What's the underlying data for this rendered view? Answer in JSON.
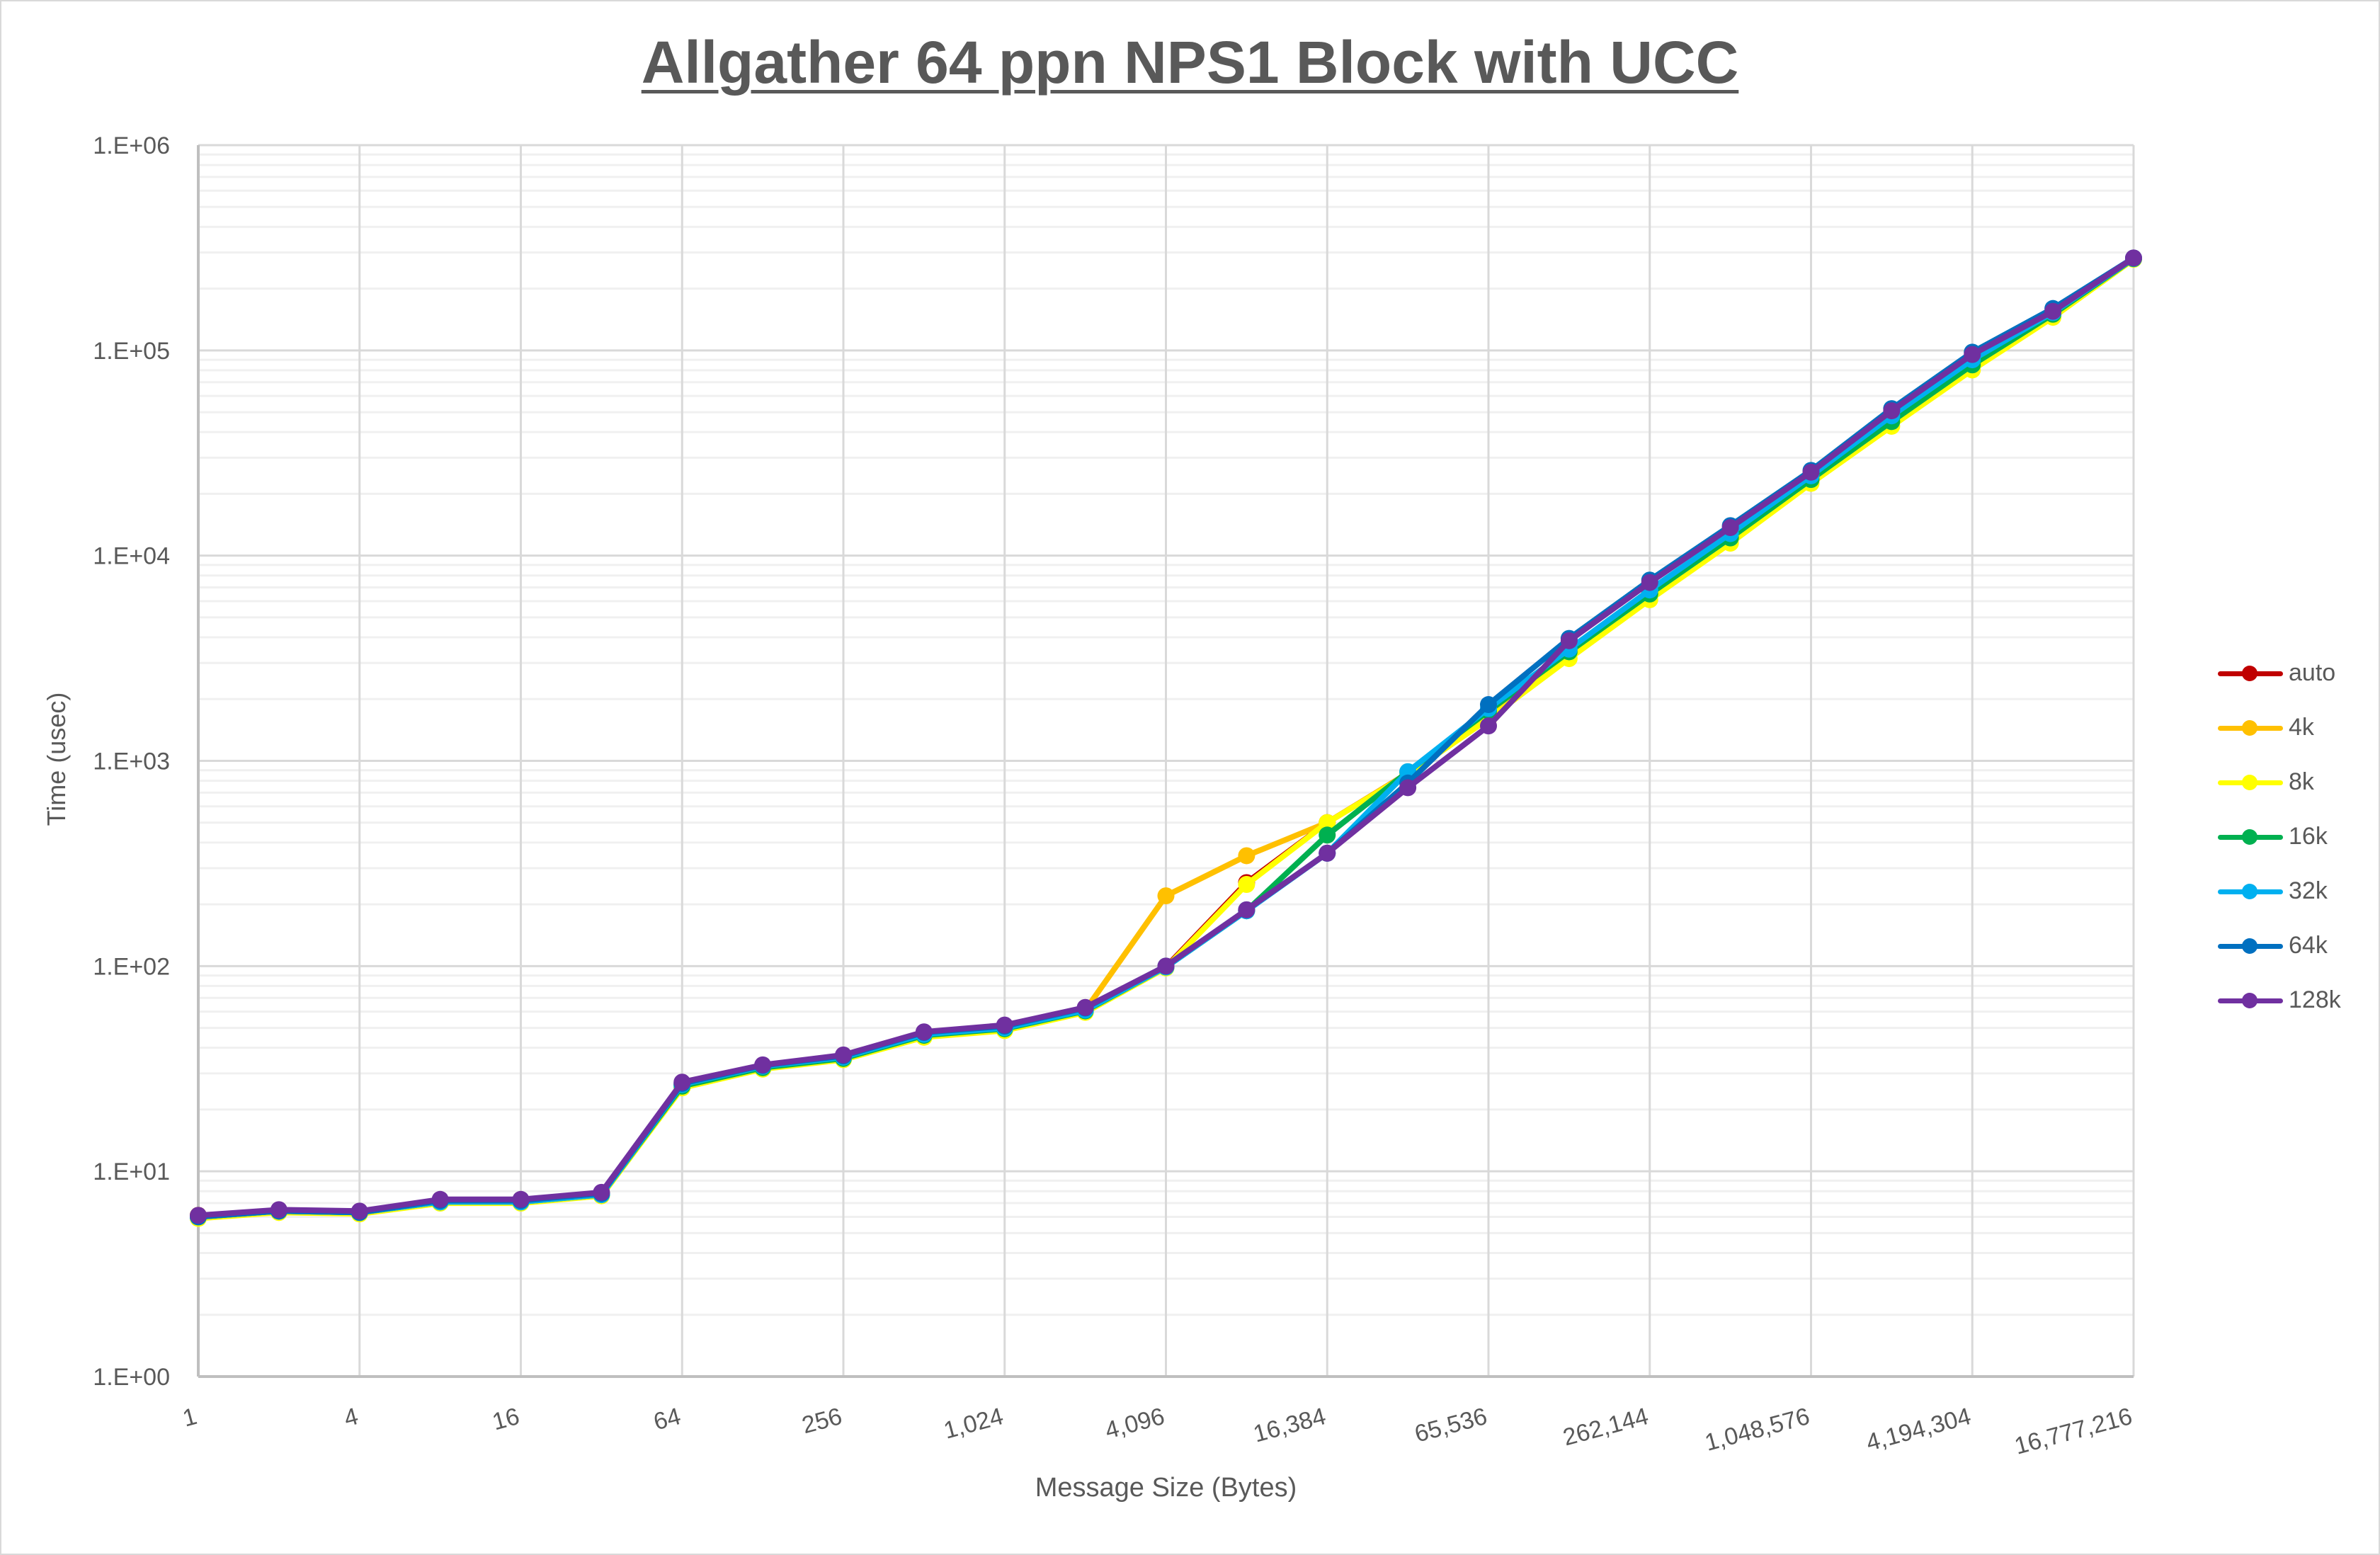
{
  "chart": {
    "title": "Allgather 64 ppn NPS1 Block with UCC",
    "xlabel": "Message Size (Bytes)",
    "ylabel": "Time (usec)",
    "y_ticks": [
      "1.E+00",
      "1.E+01",
      "1.E+02",
      "1.E+03",
      "1.E+04",
      "1.E+05",
      "1.E+06"
    ],
    "x_ticks": [
      "1",
      "4",
      "16",
      "64",
      "256",
      "1,024",
      "4,096",
      "16,384",
      "65,536",
      "262,144",
      "1,048,576",
      "4,194,304",
      "16,777,216"
    ]
  },
  "legend": [
    {
      "name": "auto",
      "color": "#C00000"
    },
    {
      "name": "4k",
      "color": "#FFC000"
    },
    {
      "name": "8k",
      "color": "#FFFF00"
    },
    {
      "name": "16k",
      "color": "#00B050"
    },
    {
      "name": "32k",
      "color": "#00B0F0"
    },
    {
      "name": "64k",
      "color": "#0070C0"
    },
    {
      "name": "128k",
      "color": "#7030A0"
    }
  ],
  "chart_data": {
    "type": "line",
    "title": "Allgather 64 ppn NPS1 Block with UCC",
    "xlabel": "Message Size (Bytes)",
    "ylabel": "Time (usec)",
    "x_scale": "log2",
    "y_scale": "log10",
    "ylim": [
      1,
      1000000
    ],
    "grid": true,
    "legend_position": "right",
    "x": [
      1,
      2,
      4,
      8,
      16,
      32,
      64,
      128,
      256,
      512,
      1024,
      2048,
      4096,
      8192,
      16384,
      32768,
      65536,
      131072,
      262144,
      524288,
      1048576,
      2097152,
      4194304,
      8388608,
      16777216
    ],
    "series": [
      {
        "name": "auto",
        "color": "#C00000",
        "values": [
          6.1,
          6.4,
          6.3,
          7.2,
          7.2,
          7.8,
          26.5,
          32.5,
          36,
          46.5,
          50,
          61,
          99,
          255,
          500,
          870,
          1700,
          3500,
          6700,
          12500,
          24000,
          47000,
          88000,
          150000,
          280000
        ]
      },
      {
        "name": "4k",
        "color": "#FFC000",
        "values": [
          6.1,
          6.4,
          6.3,
          7.2,
          7.2,
          7.8,
          26.5,
          32.5,
          36,
          46.5,
          50,
          61,
          220,
          345,
          500,
          870,
          1650,
          3400,
          6600,
          12300,
          23500,
          46000,
          86000,
          150000,
          280000
        ]
      },
      {
        "name": "8k",
        "color": "#FFFF00",
        "values": [
          5.9,
          6.3,
          6.2,
          7.0,
          7.0,
          7.6,
          25.5,
          31.5,
          35,
          45,
          48.5,
          59.5,
          98,
          250,
          500,
          860,
          1600,
          3150,
          6100,
          11500,
          22500,
          42700,
          80300,
          145000,
          278000
        ]
      },
      {
        "name": "16k",
        "color": "#00B050",
        "values": [
          6.0,
          6.4,
          6.3,
          7.1,
          7.1,
          7.7,
          26,
          32,
          35.5,
          46,
          49.5,
          60.5,
          99,
          186,
          435,
          885,
          1750,
          3400,
          6500,
          12200,
          23500,
          45000,
          85000,
          150000,
          280000
        ]
      },
      {
        "name": "32k",
        "color": "#00B0F0",
        "values": [
          6.0,
          6.4,
          6.3,
          7.1,
          7.1,
          7.7,
          26.5,
          32.5,
          36,
          46.5,
          50,
          61,
          99,
          186,
          355,
          885,
          1800,
          3500,
          6800,
          12800,
          24500,
          48000,
          90000,
          153000,
          281000
        ]
      },
      {
        "name": "64k",
        "color": "#0070C0",
        "values": [
          6.0,
          6.4,
          6.3,
          7.2,
          7.2,
          7.8,
          26.8,
          32.8,
          36.5,
          47.5,
          51,
          62.5,
          100,
          188,
          355,
          780,
          1880,
          3950,
          7600,
          14000,
          26000,
          52000,
          98000,
          160000,
          282000
        ]
      },
      {
        "name": "128k",
        "color": "#7030A0",
        "values": [
          6.1,
          6.5,
          6.4,
          7.3,
          7.3,
          7.9,
          27.2,
          33,
          36.9,
          47.8,
          51.6,
          62.9,
          100,
          188,
          355,
          740,
          1480,
          3850,
          7400,
          13700,
          25500,
          50800,
          95500,
          155000,
          282000
        ]
      }
    ]
  }
}
